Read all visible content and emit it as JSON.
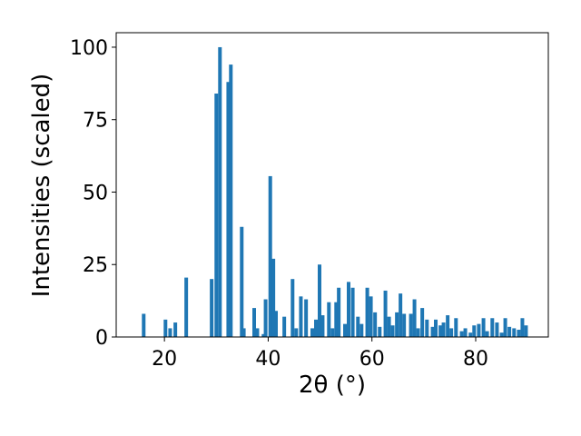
{
  "chart_data": {
    "type": "bar",
    "xlabel": "2θ (°)",
    "ylabel": "Intensities (scaled)",
    "color": "#1f77b4",
    "x": [
      16.0,
      20.2,
      21.1,
      22.1,
      24.2,
      29.1,
      30.0,
      30.7,
      32.3,
      32.8,
      34.9,
      35.3,
      37.3,
      37.9,
      39.1,
      39.5,
      40.4,
      41.0,
      41.5,
      43.1,
      44.7,
      45.4,
      46.3,
      47.3,
      48.5,
      49.2,
      49.9,
      50.5,
      51.7,
      52.4,
      53.1,
      53.6,
      54.8,
      55.5,
      56.3,
      57.3,
      58.0,
      59.1,
      59.8,
      60.6,
      61.5,
      62.6,
      63.3,
      64.0,
      64.8,
      65.5,
      66.2,
      67.5,
      68.2,
      68.9,
      69.7,
      70.6,
      71.7,
      72.3,
      73.2,
      73.8,
      74.6,
      75.3,
      76.2,
      77.3,
      78.0,
      79.0,
      79.7,
      80.6,
      81.5,
      82.2,
      83.2,
      84.1,
      85.0,
      85.7,
      86.5,
      87.4,
      88.3,
      89.0,
      89.7
    ],
    "values": [
      8,
      6,
      3,
      5,
      20.5,
      20,
      84,
      100,
      88,
      94,
      38,
      3,
      10,
      3,
      1,
      13,
      55.5,
      27,
      9,
      7,
      20,
      3,
      14,
      13,
      3,
      6,
      25,
      7.5,
      12,
      3,
      12,
      17,
      4.5,
      19,
      17,
      7,
      4.5,
      17,
      14,
      8.5,
      3.5,
      16,
      7,
      4,
      8.5,
      15,
      8,
      8,
      13,
      3,
      10,
      6,
      3.5,
      6,
      4,
      5,
      7.5,
      3,
      6.5,
      2,
      3,
      1.5,
      4,
      4.5,
      6.5,
      2,
      6.5,
      5,
      1.5,
      6.5,
      3.5,
      3,
      2.5,
      6.5,
      4
    ],
    "xlim": [
      10.7,
      94.0
    ],
    "xticks": [
      20,
      40,
      60,
      80
    ],
    "ylim": [
      0,
      105
    ],
    "yticks": [
      0,
      25,
      50,
      75,
      100
    ]
  }
}
